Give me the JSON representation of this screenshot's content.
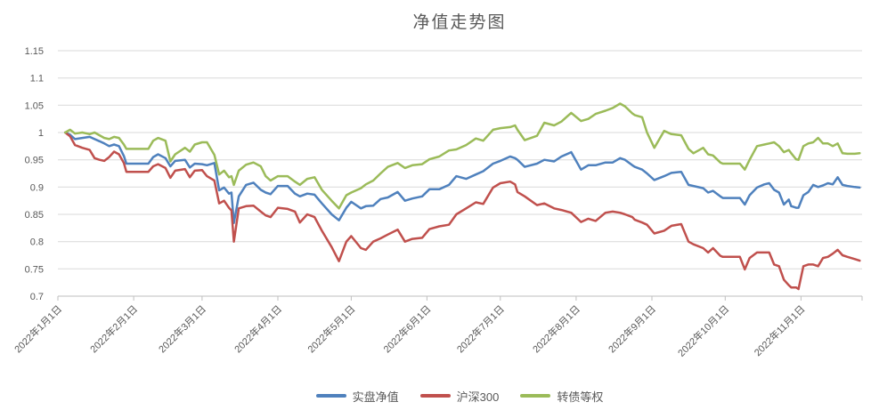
{
  "page": {
    "background": "#FFFFFF"
  },
  "chart_data": {
    "type": "line",
    "title": "净值走势图",
    "grid": "horizontal",
    "legend_position": "bottom",
    "colors": {
      "gridline": "#D9D9D9",
      "axis": "#BFBFBF",
      "text": "#595959"
    },
    "x_axis": {
      "unit": "date-2022-day-offset",
      "tick_labels": [
        "2022年1月1日",
        "2022年2月1日",
        "2022年3月1日",
        "2022年4月1日",
        "2022年5月1日",
        "2022年6月1日",
        "2022年7月1日",
        "2022年8月1日",
        "2022年9月1日",
        "2022年10月1日",
        "2022年11月1日"
      ],
      "tick_days": [
        0,
        31,
        59,
        90,
        120,
        151,
        181,
        212,
        243,
        273,
        304
      ],
      "range_days": [
        0,
        329
      ]
    },
    "y_axis": {
      "tick_labels": [
        "1.15",
        "1.1",
        "1.05",
        "1",
        "0.95",
        "0.9",
        "0.85",
        "0.8",
        "0.75",
        "0.7"
      ],
      "tick_values": [
        1.15,
        1.1,
        1.05,
        1,
        0.95,
        0.9,
        0.85,
        0.8,
        0.75,
        0.7
      ],
      "ylim": [
        0.7,
        1.15
      ]
    },
    "x_days": [
      3,
      5,
      7,
      10,
      13,
      15,
      17,
      19,
      21,
      23,
      25,
      27,
      28,
      37,
      39,
      41,
      44,
      46,
      48,
      52,
      54,
      56,
      59,
      61,
      64,
      66,
      68,
      70,
      71,
      72,
      74,
      77,
      80,
      83,
      85,
      87,
      90,
      94,
      97,
      99,
      102,
      105,
      108,
      112,
      115,
      118,
      120,
      124,
      126,
      129,
      132,
      135,
      139,
      142,
      145,
      149,
      152,
      156,
      160,
      163,
      167,
      171,
      174,
      178,
      181,
      185,
      187,
      188,
      191,
      196,
      199,
      203,
      206,
      210,
      214,
      217,
      220,
      224,
      227,
      230,
      232,
      235,
      236,
      239,
      241,
      244,
      248,
      251,
      255,
      258,
      260,
      264,
      266,
      268,
      271,
      272,
      279,
      281,
      283,
      286,
      289,
      291,
      293,
      295,
      297,
      299,
      300,
      302,
      303,
      305,
      307,
      309,
      311,
      313,
      315,
      317,
      319,
      321,
      323,
      326,
      328
    ],
    "series": [
      {
        "name": "实盘净值",
        "color": "#4F81BD",
        "values": [
          1.0,
          0.996,
          0.988,
          0.99,
          0.992,
          0.988,
          0.984,
          0.98,
          0.975,
          0.978,
          0.975,
          0.957,
          0.943,
          0.943,
          0.955,
          0.96,
          0.953,
          0.938,
          0.948,
          0.95,
          0.936,
          0.943,
          0.942,
          0.94,
          0.944,
          0.894,
          0.899,
          0.888,
          0.89,
          0.834,
          0.883,
          0.904,
          0.908,
          0.895,
          0.89,
          0.887,
          0.902,
          0.902,
          0.888,
          0.883,
          0.888,
          0.886,
          0.87,
          0.85,
          0.839,
          0.862,
          0.873,
          0.861,
          0.865,
          0.866,
          0.878,
          0.881,
          0.891,
          0.875,
          0.879,
          0.883,
          0.896,
          0.896,
          0.904,
          0.92,
          0.915,
          0.923,
          0.929,
          0.943,
          0.948,
          0.956,
          0.953,
          0.95,
          0.937,
          0.943,
          0.95,
          0.947,
          0.956,
          0.964,
          0.932,
          0.94,
          0.94,
          0.945,
          0.945,
          0.953,
          0.95,
          0.94,
          0.937,
          0.932,
          0.925,
          0.913,
          0.92,
          0.926,
          0.928,
          0.904,
          0.902,
          0.898,
          0.89,
          0.893,
          0.883,
          0.88,
          0.88,
          0.868,
          0.885,
          0.899,
          0.905,
          0.907,
          0.895,
          0.89,
          0.868,
          0.877,
          0.865,
          0.862,
          0.862,
          0.885,
          0.891,
          0.904,
          0.9,
          0.903,
          0.907,
          0.905,
          0.918,
          0.904,
          0.902,
          0.9,
          0.899
        ]
      },
      {
        "name": "沪深300",
        "color": "#C0504D",
        "values": [
          1.0,
          0.993,
          0.977,
          0.972,
          0.968,
          0.953,
          0.95,
          0.948,
          0.955,
          0.965,
          0.96,
          0.944,
          0.928,
          0.928,
          0.938,
          0.942,
          0.935,
          0.917,
          0.93,
          0.933,
          0.918,
          0.93,
          0.931,
          0.92,
          0.912,
          0.87,
          0.875,
          0.862,
          0.857,
          0.8,
          0.861,
          0.865,
          0.866,
          0.855,
          0.848,
          0.845,
          0.862,
          0.86,
          0.855,
          0.835,
          0.85,
          0.845,
          0.82,
          0.79,
          0.764,
          0.8,
          0.81,
          0.788,
          0.785,
          0.8,
          0.806,
          0.813,
          0.822,
          0.8,
          0.805,
          0.807,
          0.823,
          0.828,
          0.831,
          0.85,
          0.861,
          0.872,
          0.869,
          0.899,
          0.907,
          0.91,
          0.905,
          0.891,
          0.883,
          0.867,
          0.87,
          0.861,
          0.858,
          0.853,
          0.836,
          0.842,
          0.838,
          0.853,
          0.855,
          0.853,
          0.85,
          0.845,
          0.84,
          0.835,
          0.831,
          0.815,
          0.82,
          0.829,
          0.832,
          0.8,
          0.795,
          0.788,
          0.78,
          0.788,
          0.774,
          0.772,
          0.772,
          0.749,
          0.77,
          0.78,
          0.78,
          0.78,
          0.758,
          0.755,
          0.73,
          0.72,
          0.716,
          0.716,
          0.713,
          0.755,
          0.758,
          0.758,
          0.755,
          0.77,
          0.772,
          0.778,
          0.785,
          0.775,
          0.772,
          0.768,
          0.765
        ]
      },
      {
        "name": "转债等权",
        "color": "#9BBB59",
        "values": [
          1.0,
          1.005,
          0.998,
          1.0,
          0.997,
          1.0,
          0.995,
          0.99,
          0.988,
          0.992,
          0.99,
          0.978,
          0.97,
          0.97,
          0.985,
          0.99,
          0.985,
          0.947,
          0.96,
          0.972,
          0.965,
          0.978,
          0.982,
          0.982,
          0.959,
          0.923,
          0.93,
          0.918,
          0.92,
          0.904,
          0.93,
          0.941,
          0.945,
          0.938,
          0.92,
          0.912,
          0.92,
          0.92,
          0.91,
          0.904,
          0.915,
          0.918,
          0.895,
          0.875,
          0.861,
          0.885,
          0.89,
          0.898,
          0.905,
          0.912,
          0.925,
          0.937,
          0.944,
          0.935,
          0.94,
          0.942,
          0.951,
          0.956,
          0.967,
          0.969,
          0.977,
          0.989,
          0.985,
          1.005,
          1.008,
          1.01,
          1.013,
          1.005,
          0.986,
          0.994,
          1.018,
          1.013,
          1.02,
          1.036,
          1.021,
          1.025,
          1.034,
          1.04,
          1.045,
          1.053,
          1.048,
          1.035,
          1.032,
          1.028,
          1.0,
          0.972,
          1.003,
          0.997,
          0.995,
          0.97,
          0.962,
          0.972,
          0.96,
          0.958,
          0.945,
          0.943,
          0.943,
          0.932,
          0.95,
          0.975,
          0.978,
          0.98,
          0.982,
          0.975,
          0.964,
          0.968,
          0.962,
          0.951,
          0.95,
          0.975,
          0.98,
          0.982,
          0.99,
          0.98,
          0.98,
          0.975,
          0.98,
          0.962,
          0.961,
          0.961,
          0.962
        ]
      }
    ]
  }
}
